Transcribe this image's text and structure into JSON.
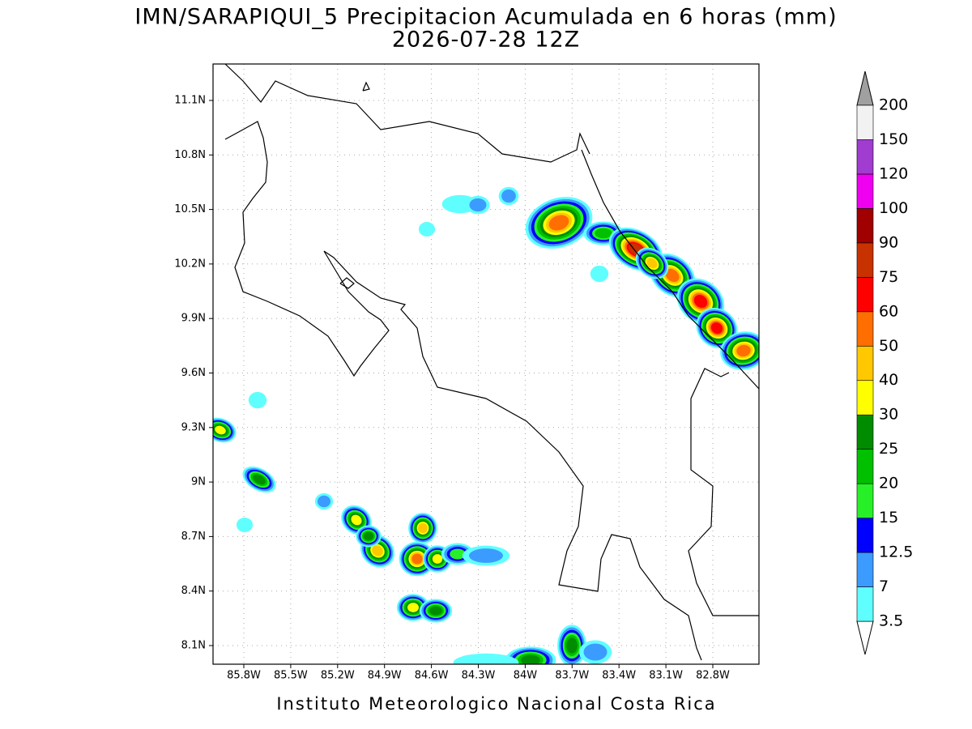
{
  "title": {
    "line1": "IMN/SARAPIQUI_5 Precipitacion Acumulada en 6 horas (mm)",
    "line2": "2026-07-28 12Z"
  },
  "map": {
    "lat_labels": [
      "11.1N",
      "10.8N",
      "10.5N",
      "10.2N",
      "9.9N",
      "9.6N",
      "9.3N",
      "9N",
      "8.7N",
      "8.4N",
      "8.1N"
    ],
    "lon_labels": [
      "85.8W",
      "85.5W",
      "85.2W",
      "84.9W",
      "84.6W",
      "84.3W",
      "84W",
      "83.7W",
      "83.4W",
      "83.1W",
      "82.8W"
    ]
  },
  "colorbar": {
    "levels": [
      3.5,
      7,
      12.5,
      15,
      20,
      25,
      30,
      40,
      50,
      60,
      75,
      90,
      100,
      120,
      150,
      200
    ],
    "colors": [
      "#60ffff",
      "#3c9bff",
      "#0000ff",
      "#28f028",
      "#00c000",
      "#008c00",
      "#ffff00",
      "#ffc800",
      "#ff6e00",
      "#ff0000",
      "#c83200",
      "#a00000",
      "#f000f0",
      "#a03cd0",
      "#f2f2f2"
    ],
    "under_color": "#ffffff",
    "over_color": "#a0a0a0"
  },
  "footer": "Instituto Meteorologico Nacional Costa Rica"
}
